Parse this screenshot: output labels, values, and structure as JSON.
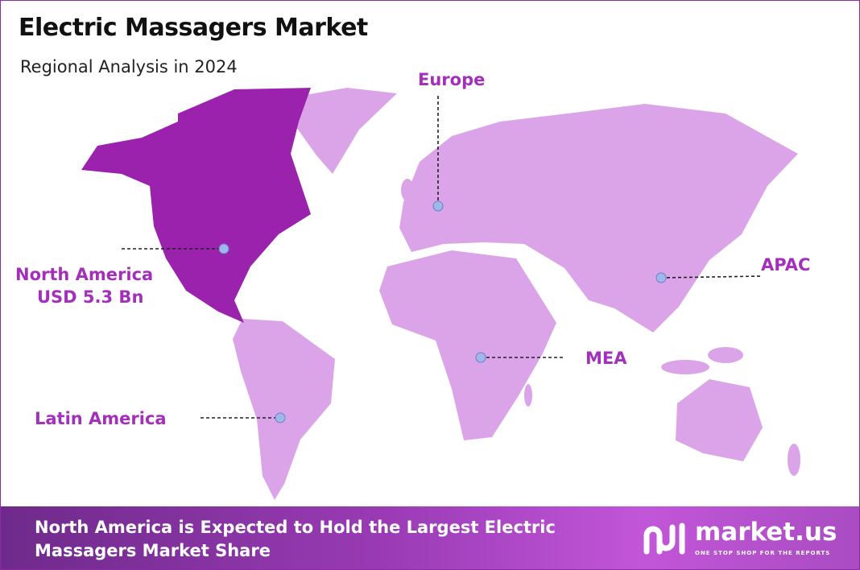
{
  "header": {
    "title": "Electric Massagers Market",
    "subtitle": "Regional Analysis in 2024"
  },
  "regions": [
    {
      "label": "North America",
      "value": "USD 5.3 Bn"
    },
    {
      "label": "Europe"
    },
    {
      "label": "APAC"
    },
    {
      "label": "MEA"
    },
    {
      "label": "Latin America"
    }
  ],
  "footer": {
    "text": "North America is Expected to Hold the Largest Electric Massagers Market Share",
    "brand": "market.us",
    "tagline": "ONE STOP SHOP FOR THE REPORTS"
  }
}
